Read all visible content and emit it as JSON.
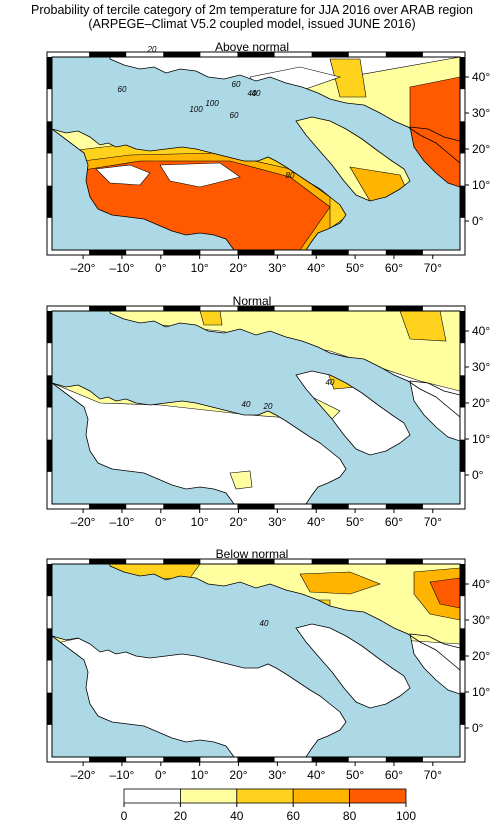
{
  "title_line1": "Probability of tercile category of 2m temperature for JJA 2016 over ARAB region",
  "title_line2": "(ARPEGE–Climat V5.2 coupled model, issued JUNE  2016)",
  "x_ticks": [
    "–20°",
    "–10°",
    "0°",
    "10°",
    "20°",
    "30°",
    "40°",
    "50°",
    "60°",
    "70°"
  ],
  "y_ticks": [
    "40°",
    "30°",
    "20°",
    "10°",
    "0°"
  ],
  "colorbar": {
    "labels": [
      "0",
      "20",
      "40",
      "60",
      "80",
      "100"
    ],
    "colors": [
      "#ffffff",
      "#ffff9f",
      "#ffd21e",
      "#ffb400",
      "#ff8c00",
      "#ff5a00"
    ]
  },
  "colors": {
    "sea": "#add8e6",
    "cat_0_20": "#ffffff",
    "cat_20_40": "#ffff9f",
    "cat_40_60": "#ffd21e",
    "cat_60_80": "#ffb400",
    "cat_80_100": "#ff5a00"
  },
  "panels": [
    {
      "id": "above",
      "title": "Above normal",
      "contour_labels": [
        "20",
        "60",
        "40",
        "60",
        "40",
        "100",
        "100",
        "60",
        "80"
      ]
    },
    {
      "id": "normal",
      "title": "Normal",
      "contour_labels": [
        "40",
        "20",
        "40"
      ]
    },
    {
      "id": "below",
      "title": "Below normal",
      "contour_labels": [
        "40"
      ]
    }
  ]
}
